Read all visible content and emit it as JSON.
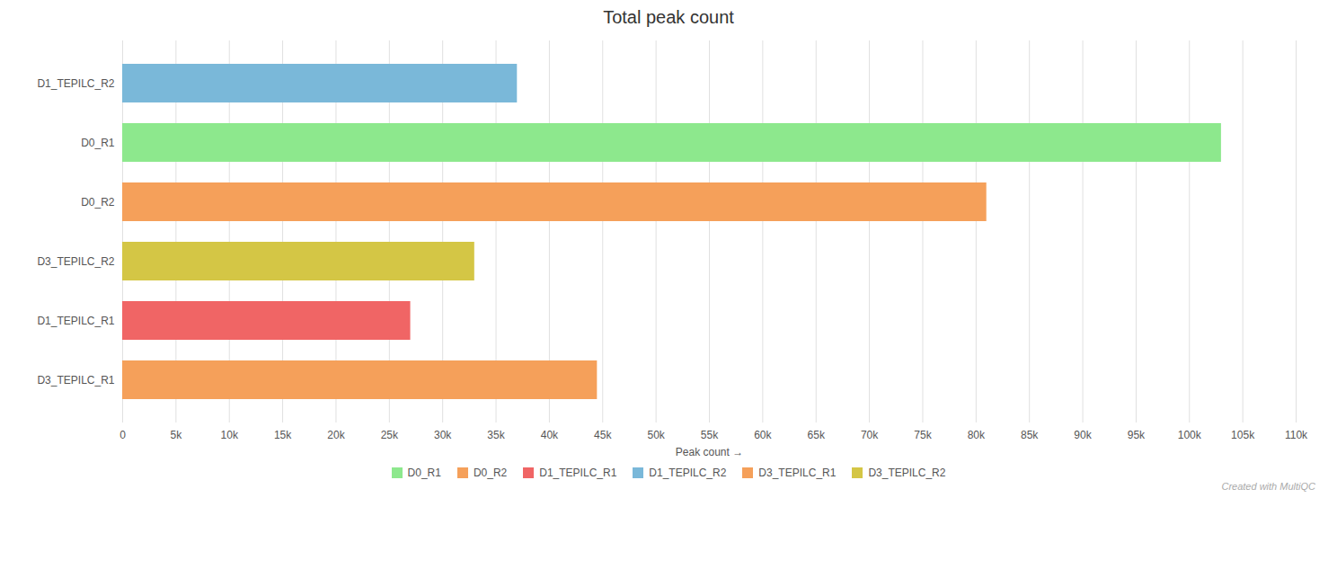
{
  "chart_data": {
    "type": "bar",
    "orientation": "horizontal",
    "title": "Total peak count",
    "xlabel": "Peak count",
    "categories": [
      "D1_TEPILC_R2",
      "D0_R1",
      "D0_R2",
      "D3_TEPILC_R2",
      "D1_TEPILC_R1",
      "D3_TEPILC_R1"
    ],
    "series": [
      {
        "name": "D0_R1",
        "color": "#8de88d",
        "values": [
          null,
          103000,
          null,
          null,
          null,
          null
        ]
      },
      {
        "name": "D0_R2",
        "color": "#f5a05a",
        "values": [
          null,
          null,
          81000,
          null,
          null,
          null
        ]
      },
      {
        "name": "D1_TEPILC_R1",
        "color": "#f06565",
        "values": [
          null,
          null,
          null,
          null,
          27000,
          null
        ]
      },
      {
        "name": "D1_TEPILC_R2",
        "color": "#7ab8d9",
        "values": [
          37000,
          null,
          null,
          null,
          null,
          null
        ]
      },
      {
        "name": "D3_TEPILC_R1",
        "color": "#f5a05a",
        "values": [
          null,
          null,
          null,
          null,
          null,
          44500
        ]
      },
      {
        "name": "D3_TEPILC_R2",
        "color": "#d4c645",
        "values": [
          null,
          null,
          null,
          33000,
          null,
          null
        ]
      }
    ],
    "xlim": [
      0,
      110000
    ],
    "xticks": [
      0,
      {
        "value": 5000,
        "label": "5k"
      },
      {
        "value": 10000,
        "label": "10k"
      },
      {
        "value": 15000,
        "label": "15k"
      },
      {
        "value": 20000,
        "label": "20k"
      },
      {
        "value": 25000,
        "label": "25k"
      },
      {
        "value": 30000,
        "label": "30k"
      },
      {
        "value": 35000,
        "label": "35k"
      },
      {
        "value": 40000,
        "label": "40k"
      },
      {
        "value": 45000,
        "label": "45k"
      },
      {
        "value": 50000,
        "label": "50k"
      },
      {
        "value": 55000,
        "label": "55k"
      },
      {
        "value": 60000,
        "label": "60k"
      },
      {
        "value": 65000,
        "label": "65k"
      },
      {
        "value": 70000,
        "label": "70k"
      },
      {
        "value": 75000,
        "label": "75k"
      },
      {
        "value": 80000,
        "label": "80k"
      },
      {
        "value": 85000,
        "label": "85k"
      },
      {
        "value": 90000,
        "label": "90k"
      },
      {
        "value": 95000,
        "label": "95k"
      },
      {
        "value": 100000,
        "label": "100k"
      },
      {
        "value": 105000,
        "label": "105k"
      },
      {
        "value": 110000,
        "label": "110k"
      }
    ],
    "grid": true,
    "legend": "bottom",
    "annotations": [
      "Created with MultiQC"
    ]
  }
}
